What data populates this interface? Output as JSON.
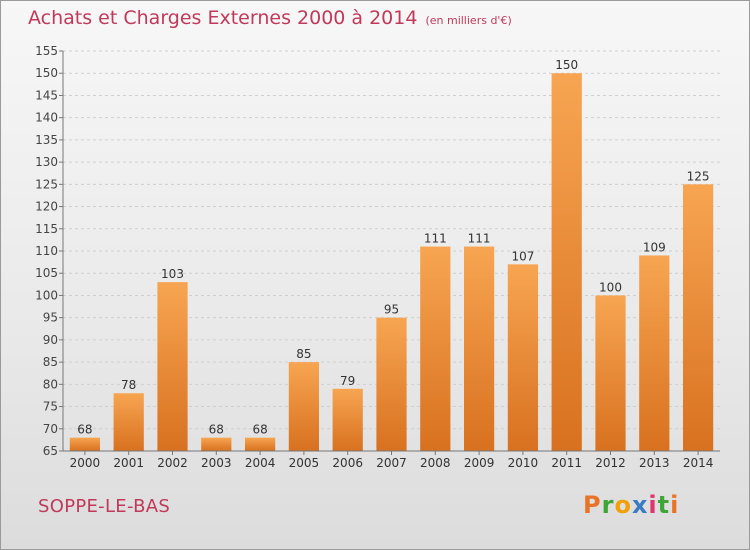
{
  "header": {
    "title": "Achats et Charges Externes 2000 à 2014",
    "unit": "(en milliers d'€)"
  },
  "footer": {
    "commune": "SOPPE-LE-BAS",
    "logo_letters": [
      "P",
      "r",
      "o",
      "x",
      "i",
      "t",
      "i"
    ],
    "logo_colors": [
      "#e8742a",
      "#3fa535",
      "#f0a10a",
      "#3a7cc0",
      "#e2356f",
      "#3fa535",
      "#e8742a"
    ]
  },
  "chart_data": {
    "type": "bar",
    "categories": [
      "2000",
      "2001",
      "2002",
      "2003",
      "2004",
      "2005",
      "2006",
      "2007",
      "2008",
      "2009",
      "2010",
      "2011",
      "2012",
      "2013",
      "2014"
    ],
    "values": [
      68,
      78,
      103,
      68,
      68,
      85,
      79,
      95,
      111,
      111,
      107,
      150,
      100,
      109,
      125
    ],
    "yticks": [
      65,
      70,
      75,
      80,
      85,
      90,
      95,
      100,
      105,
      110,
      115,
      120,
      125,
      130,
      135,
      140,
      145,
      150,
      155
    ],
    "ylim": [
      65,
      155
    ],
    "grid": true,
    "bar_color": "#f0943f",
    "title": "Achats et Charges Externes 2000 à 2014",
    "xlabel": "",
    "ylabel": ""
  }
}
